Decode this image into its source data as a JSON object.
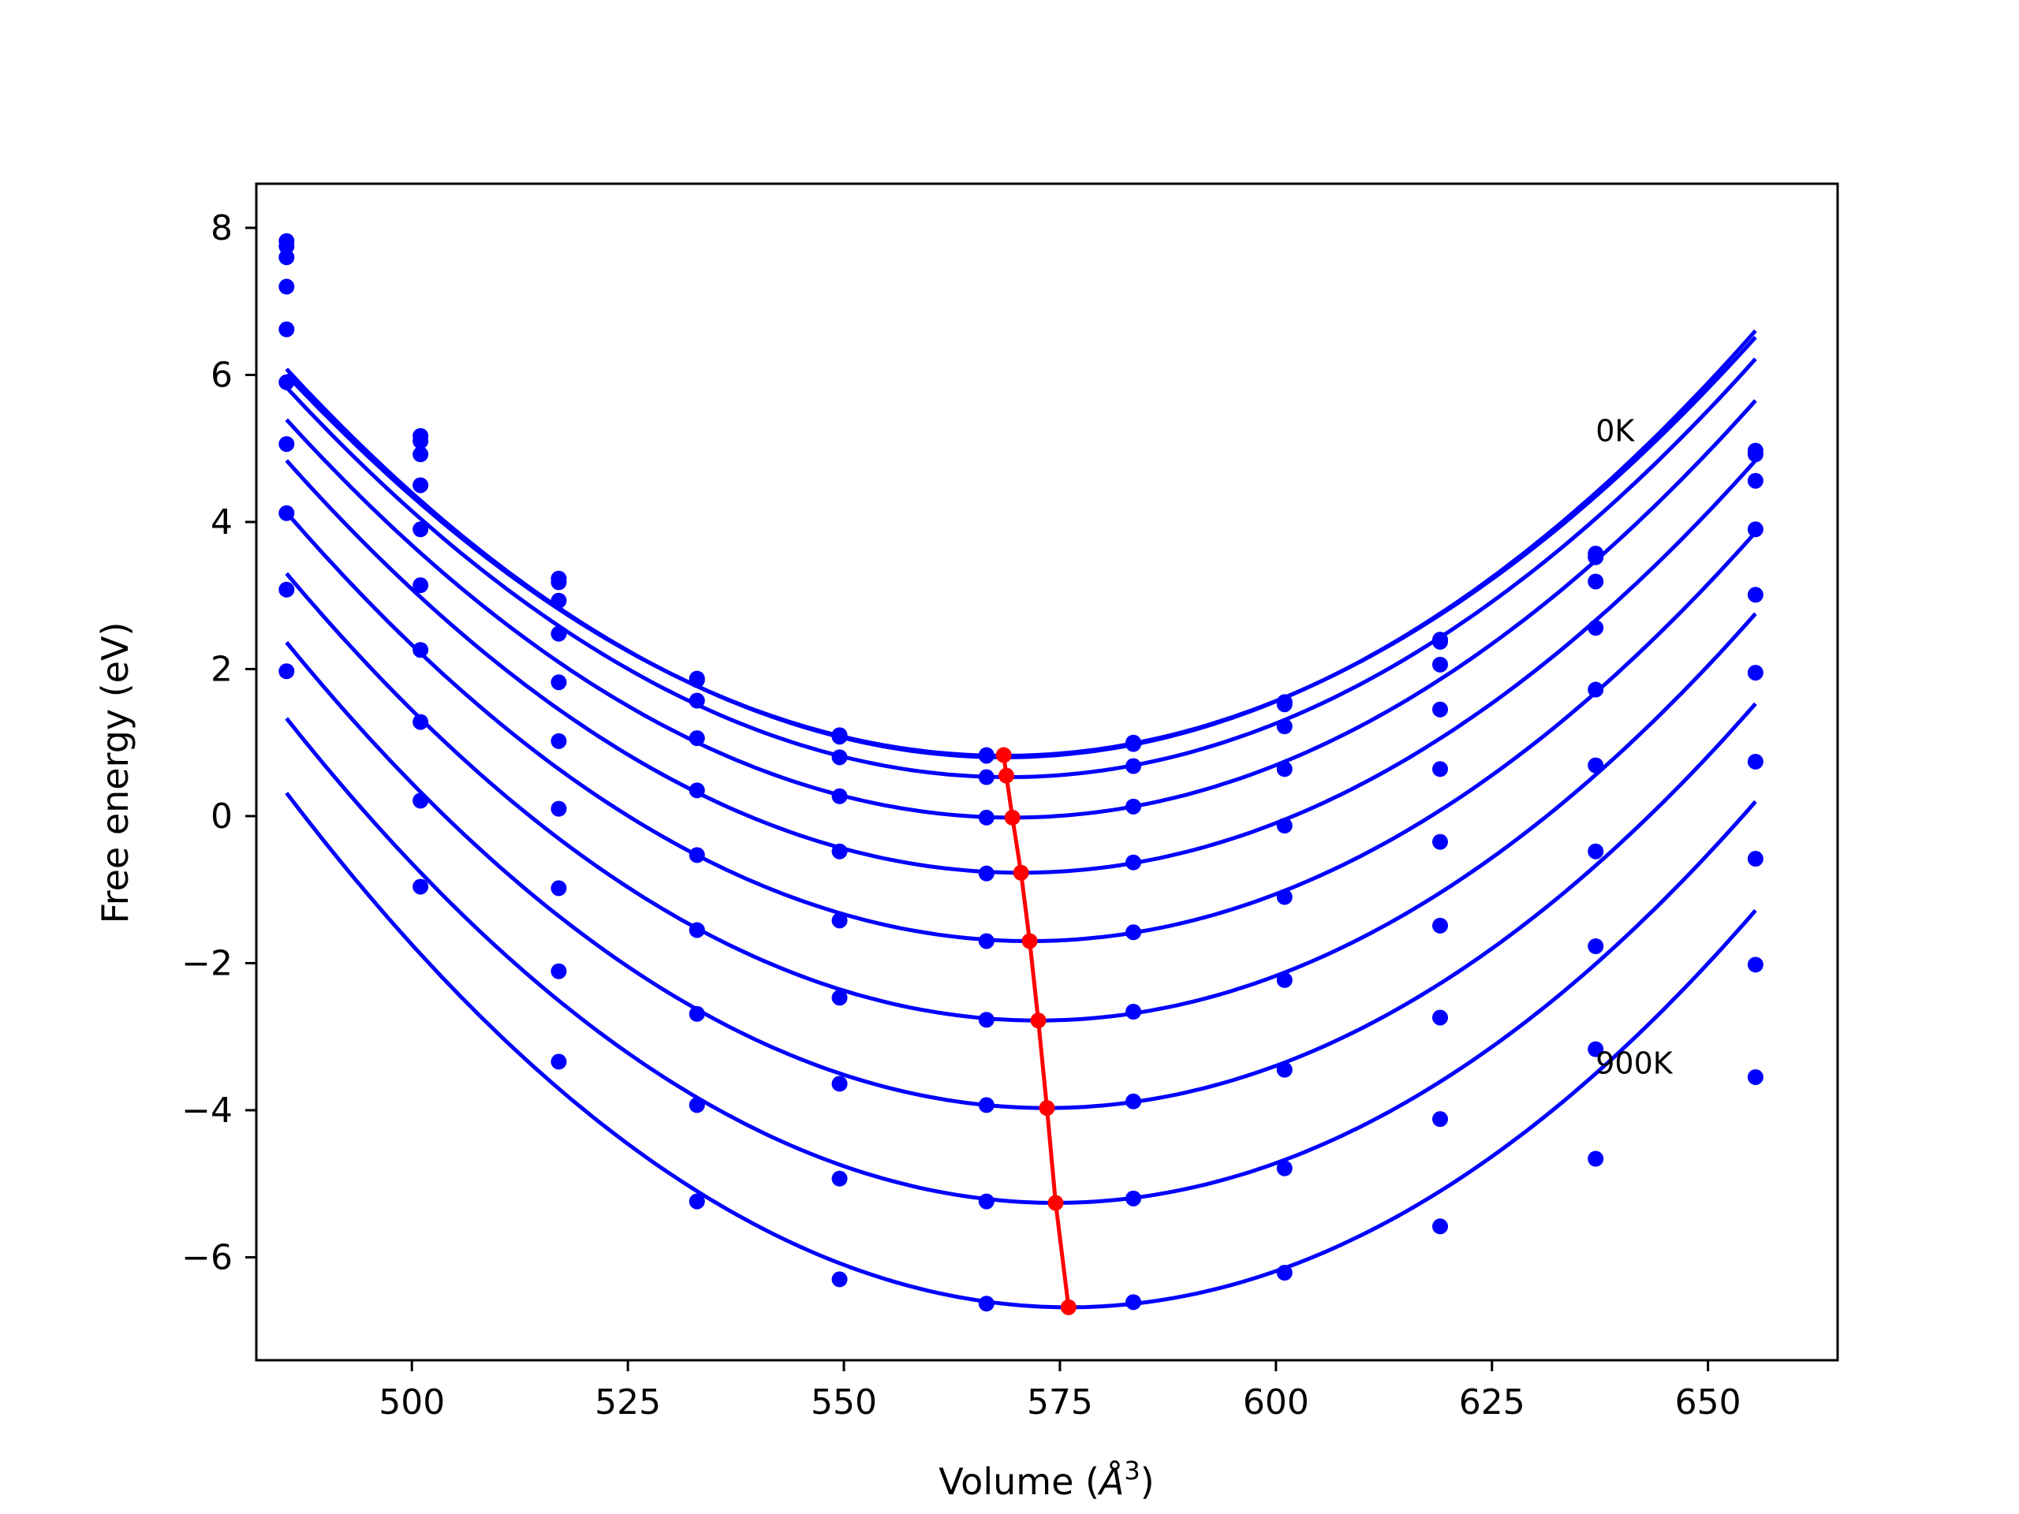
{
  "chart_data": {
    "type": "line",
    "title": "",
    "xlabel": "Volume (",
    "xlabel_symbol": "Å",
    "xlabel_exp": "3",
    "xlabel_close": ")",
    "ylabel": "Free energy (eV)",
    "xlim": [
      482,
      665
    ],
    "ylim": [
      -7.4,
      8.6
    ],
    "xticks": [
      500,
      525,
      550,
      575,
      600,
      625,
      650
    ],
    "xtick_labels": [
      "500",
      "525",
      "550",
      "575",
      "600",
      "625",
      "650"
    ],
    "yticks": [
      -6,
      -4,
      -2,
      0,
      2,
      4,
      6,
      8
    ],
    "ytick_labels": [
      "−6",
      "−4",
      "−2",
      "0",
      "2",
      "4",
      "6",
      "8"
    ],
    "grid": false,
    "volumes": [
      485.5,
      501,
      517,
      533,
      549.5,
      566.5,
      583.5,
      601,
      619,
      637,
      655.5
    ],
    "series": [
      {
        "label": "0K",
        "color": "#0000ff",
        "minimum": [
          568.5,
          0.8
        ],
        "points": [
          7.82,
          5.17,
          3.23,
          1.87,
          1.1,
          0.83,
          1.0,
          1.55,
          2.4,
          3.57,
          4.97
        ]
      },
      {
        "color": "#0000ff",
        "minimum": [
          568.5,
          0.82
        ],
        "points": [
          7.75,
          5.1,
          3.18,
          1.85,
          1.08,
          0.82,
          0.98,
          1.52,
          2.37,
          3.52,
          4.92
        ]
      },
      {
        "color": "#0000ff",
        "minimum": [
          569,
          0.53
        ],
        "points": [
          7.6,
          4.92,
          2.93,
          1.57,
          0.8,
          0.53,
          0.68,
          1.22,
          2.06,
          3.19,
          4.56
        ]
      },
      {
        "color": "#0000ff",
        "minimum": [
          569.5,
          -0.02
        ],
        "points": [
          7.2,
          4.5,
          2.48,
          1.06,
          0.27,
          -0.02,
          0.13,
          0.64,
          1.45,
          2.56,
          3.9
        ]
      },
      {
        "color": "#0000ff",
        "minimum": [
          570.5,
          -0.77
        ],
        "points": [
          6.62,
          3.9,
          1.82,
          0.35,
          -0.48,
          -0.78,
          -0.63,
          -0.13,
          0.64,
          1.72,
          3.01
        ]
      },
      {
        "color": "#0000ff",
        "minimum": [
          571.5,
          -1.7
        ],
        "points": [
          5.9,
          3.14,
          1.02,
          -0.53,
          -1.42,
          -1.7,
          -1.58,
          -1.1,
          -0.35,
          0.69,
          1.95
        ]
      },
      {
        "color": "#0000ff",
        "minimum": [
          572.5,
          -2.78
        ],
        "points": [
          5.06,
          2.26,
          0.1,
          -1.55,
          -2.47,
          -2.77,
          -2.66,
          -2.23,
          -1.49,
          -0.48,
          0.74
        ]
      },
      {
        "color": "#0000ff",
        "minimum": [
          573.5,
          -3.97
        ],
        "points": [
          4.12,
          1.28,
          -0.98,
          -2.69,
          -3.64,
          -3.93,
          -3.88,
          -3.45,
          -2.74,
          -1.77,
          -0.58
        ]
      },
      {
        "color": "#0000ff",
        "minimum": [
          574.5,
          -5.26
        ],
        "points": [
          3.08,
          0.21,
          -2.11,
          -3.93,
          -4.93,
          -5.24,
          -5.2,
          -4.79,
          -4.12,
          -3.17,
          -2.02
        ]
      },
      {
        "label": "900K",
        "color": "#0000ff",
        "minimum": [
          576,
          -6.68
        ],
        "points": [
          1.97,
          -0.96,
          -3.34,
          -5.24,
          -6.3,
          -6.63,
          -6.61,
          -6.21,
          -5.58,
          -4.66,
          -3.55
        ]
      }
    ],
    "minima_path": {
      "color": "#ff0000",
      "x": [
        568.5,
        568.8,
        569.5,
        570.5,
        571.5,
        572.5,
        573.5,
        574.5,
        576
      ],
      "y": [
        0.83,
        0.55,
        -0.02,
        -0.77,
        -1.7,
        -2.78,
        -3.97,
        -5.26,
        -6.68
      ]
    },
    "annotations": [
      {
        "text": "0K",
        "x": 637,
        "y": 5.1
      },
      {
        "text": "900K",
        "x": 637,
        "y": -3.5
      }
    ]
  }
}
